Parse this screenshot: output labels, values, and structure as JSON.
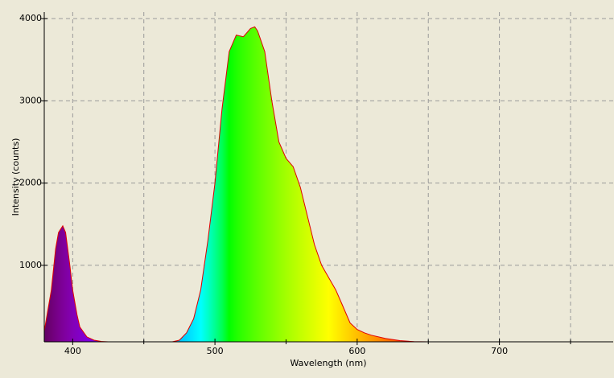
{
  "chart_data": {
    "type": "area",
    "xlabel": "Wavelength (nm)",
    "ylabel": "Intensity (counts)",
    "x": [
      380,
      385,
      388,
      390,
      393,
      395,
      398,
      400,
      403,
      405,
      410,
      415,
      420,
      425,
      470,
      475,
      480,
      485,
      490,
      495,
      500,
      505,
      510,
      515,
      520,
      525,
      528,
      530,
      535,
      540,
      545,
      550,
      555,
      560,
      565,
      570,
      575,
      580,
      585,
      590,
      595,
      600,
      605,
      610,
      620,
      630,
      640,
      650,
      780
    ],
    "values": [
      200,
      700,
      1200,
      1400,
      1480,
      1400,
      1000,
      700,
      400,
      250,
      130,
      90,
      75,
      70,
      70,
      90,
      180,
      350,
      700,
      1300,
      2000,
      2900,
      3600,
      3800,
      3780,
      3880,
      3900,
      3850,
      3600,
      3000,
      2500,
      2300,
      2200,
      1950,
      1600,
      1250,
      1000,
      850,
      700,
      500,
      300,
      220,
      180,
      150,
      110,
      85,
      72,
      70,
      70
    ],
    "color": "#e00000",
    "xlim": [
      380,
      780
    ],
    "ylim": [
      70,
      4080
    ],
    "xticks": [
      400,
      500,
      600,
      700
    ],
    "x_minor_grid": [
      450,
      550,
      650,
      750
    ],
    "yticks": [
      1000,
      2000,
      3000,
      4000
    ],
    "grid": true,
    "spectral_fill": true
  }
}
